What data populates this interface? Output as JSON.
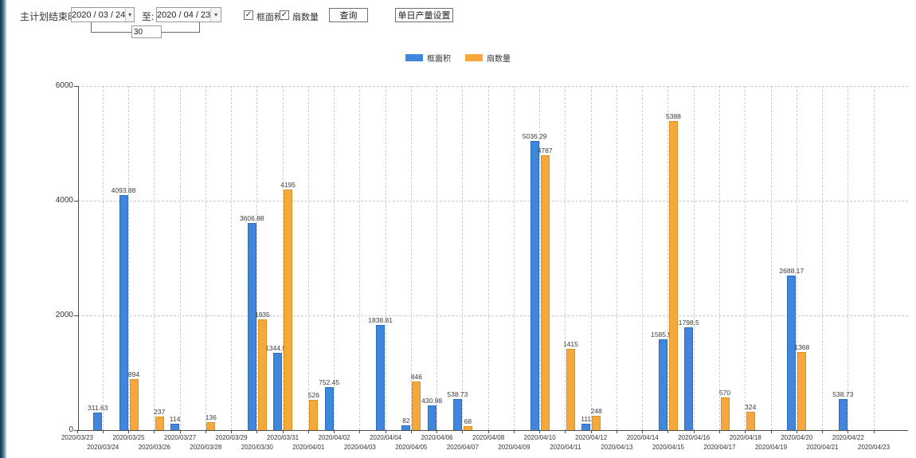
{
  "toolbar": {
    "plan_end_label": "主计划结束时间:",
    "date_from": "2020 / 03 / 24",
    "to_label": "至:",
    "date_to": "2020 / 04 / 23",
    "days_value": "30",
    "checkboxes": [
      {
        "label": "框面积",
        "checked": true
      },
      {
        "label": "扇数量",
        "checked": true
      }
    ],
    "query_button": "查询",
    "daily_output_button": "单日产量设置"
  },
  "icons": {
    "dropdown": "▾",
    "check": "✓"
  },
  "colors": {
    "area_bar": "#3f86dc",
    "area_bar_border": "#2e6cc0",
    "fan_bar": "#f5a83c",
    "fan_bar_border": "#dd8f22",
    "axis": "#4d4d4d",
    "grid": "#c9c9c9",
    "text": "#333333"
  },
  "chart_data": {
    "type": "bar",
    "title": "",
    "xlabel": "",
    "ylabel": "",
    "ylim": [
      0,
      6000
    ],
    "yticks": [
      0,
      2000,
      4000,
      6000
    ],
    "grid": true,
    "legend_position": "top",
    "categories": [
      "2020/03/23",
      "2020/03/24",
      "2020/03/25",
      "2020/03/26",
      "2020/03/27",
      "2020/03/28",
      "2020/03/29",
      "2020/03/30",
      "2020/03/31",
      "2020/04/01",
      "2020/04/02",
      "2020/04/03",
      "2020/04/04",
      "2020/04/05",
      "2020/04/06",
      "2020/04/07",
      "2020/04/08",
      "2020/04/09",
      "2020/04/10",
      "2020/04/11",
      "2020/04/12",
      "2020/04/13",
      "2020/04/14",
      "2020/04/15",
      "2020/04/16",
      "2020/04/17",
      "2020/04/18",
      "2020/04/19",
      "2020/04/20",
      "2020/04/21",
      "2020/04/22",
      "2020/04/23"
    ],
    "series": [
      {
        "name": "框面积",
        "color": "#3f86dc",
        "border": "#2e6cc0",
        "values": [
          null,
          311.63,
          4093.88,
          null,
          114,
          null,
          null,
          3606.88,
          1344.95,
          null,
          752.45,
          null,
          1838.81,
          82,
          430.98,
          538.73,
          null,
          null,
          5036.29,
          null,
          111,
          null,
          null,
          1585.96,
          1798.5,
          null,
          null,
          null,
          2688.17,
          null,
          538.73,
          null
        ]
      },
      {
        "name": "扇数量",
        "color": "#f5a83c",
        "border": "#dd8f22",
        "values": [
          null,
          null,
          894,
          237,
          null,
          136,
          null,
          1935,
          4195,
          526,
          null,
          null,
          null,
          846,
          null,
          68,
          null,
          null,
          4787,
          1415,
          248,
          null,
          null,
          5388,
          null,
          570,
          324,
          null,
          1368,
          null,
          null,
          null
        ]
      }
    ]
  }
}
